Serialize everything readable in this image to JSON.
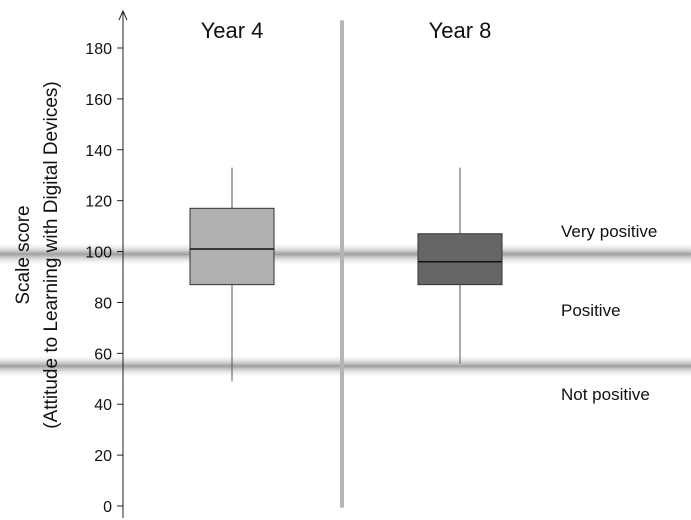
{
  "chart_data": {
    "type": "box",
    "ylabel_line1": "Scale score",
    "ylabel_line2": "(Attitude to Learning with Digital Devices)",
    "ylim": [
      0,
      190
    ],
    "yticks": [
      0,
      20,
      40,
      60,
      80,
      100,
      120,
      140,
      160,
      180
    ],
    "grid": false,
    "panels": [
      {
        "title": "Year 4",
        "whisker_low": 49,
        "q1": 87,
        "median": 101,
        "q3": 117,
        "whisker_high": 133,
        "color": "#b0b0b0"
      },
      {
        "title": "Year 8",
        "whisker_low": 56,
        "q1": 87,
        "median": 96,
        "q3": 107,
        "whisker_high": 133,
        "color": "#666666"
      }
    ],
    "bands": [
      {
        "label": "Very positive",
        "value": 99
      },
      {
        "label": "Positive",
        "value": 55
      },
      {
        "label": "Not positive",
        "value": 55
      }
    ],
    "band_label_values": [
      108,
      77,
      44
    ]
  }
}
